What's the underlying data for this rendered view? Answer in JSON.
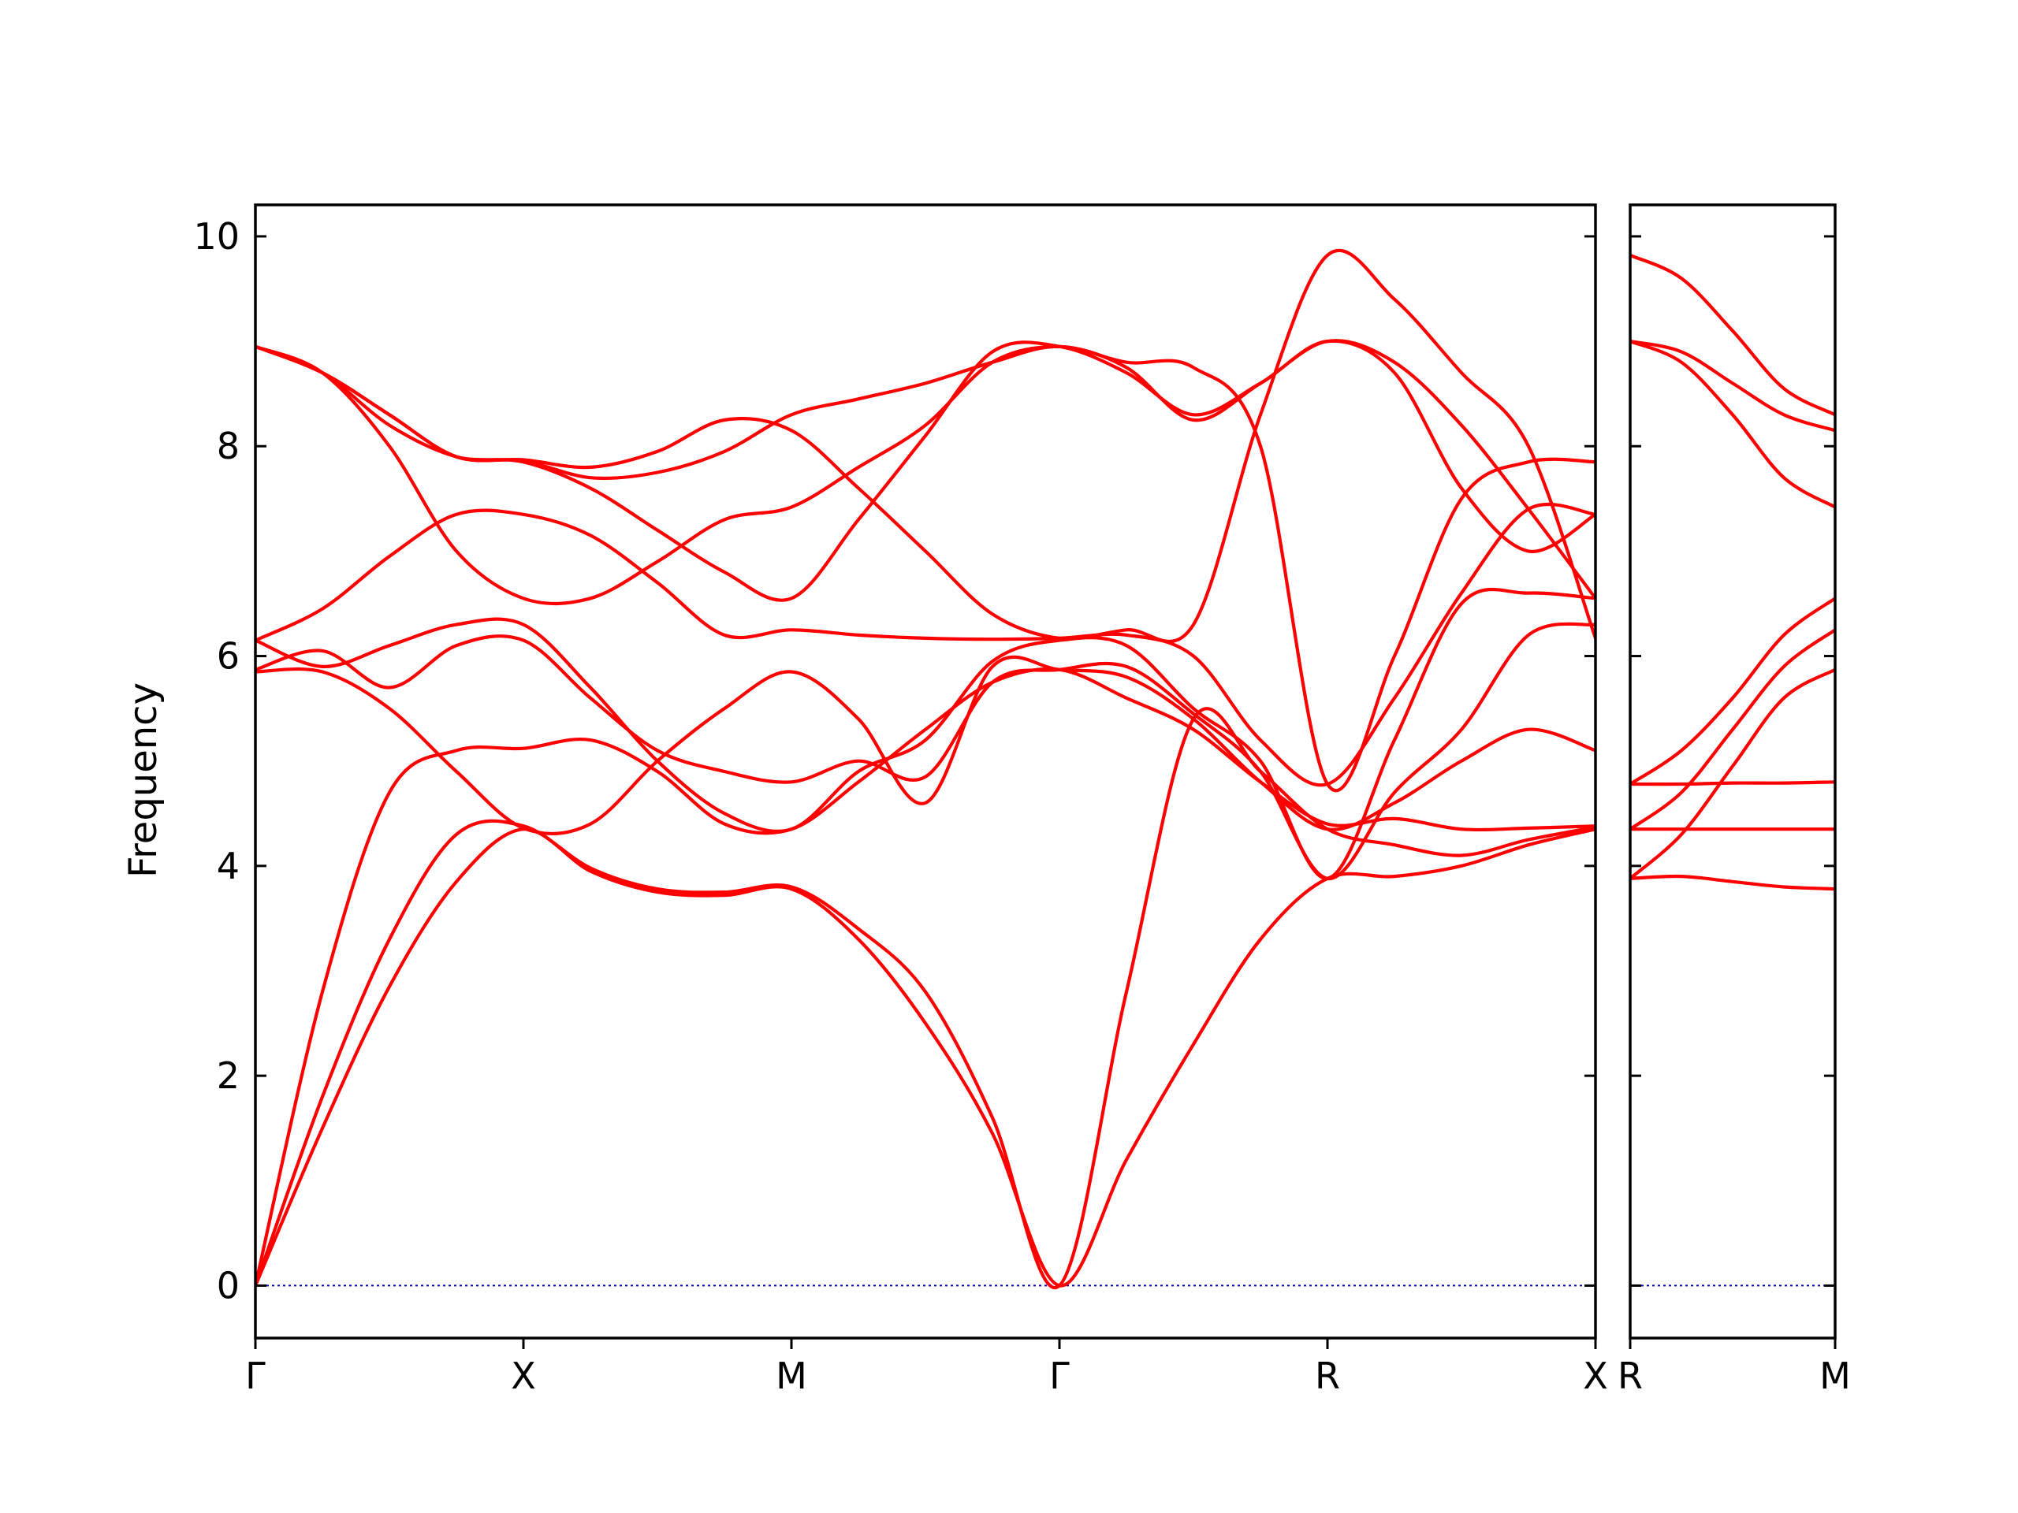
{
  "chart_data": {
    "type": "line",
    "ylabel": "Frequency",
    "ylim": [
      -0.5,
      10.3
    ],
    "yticks": [
      0,
      2,
      4,
      6,
      8,
      10
    ],
    "y_tick_labels": [
      "0",
      "2",
      "4",
      "6",
      "8",
      "10"
    ],
    "grid": false,
    "legend": "none",
    "colors": {
      "bands": "#ff0000",
      "zero_line": "#0000b0",
      "axes": "#000000"
    },
    "panels": [
      {
        "k_points": [
          0,
          1,
          2,
          3,
          4,
          5
        ],
        "k_labels": [
          "Γ",
          "X",
          "M",
          "Γ",
          "R",
          "X"
        ],
        "xlim": [
          0,
          5
        ],
        "series": [
          {
            "x": [
              0,
              0.25,
              0.5,
              0.75,
              1,
              1.25,
              1.5,
              1.75,
              2,
              2.25,
              2.5,
              2.75,
              3,
              3.25,
              3.5,
              3.75,
              4,
              4.25,
              4.5,
              4.75,
              5
            ],
            "values": [
              0,
              1.5,
              2.85,
              3.85,
              4.35,
              3.95,
              3.75,
              3.72,
              3.78,
              3.3,
              2.5,
              1.45,
              0,
              1.2,
              2.3,
              3.3,
              3.88,
              3.9,
              4.0,
              4.2,
              4.35
            ]
          },
          {
            "x": [
              0,
              0.25,
              0.5,
              0.75,
              1,
              1.25,
              1.5,
              1.75,
              2,
              2.25,
              2.5,
              2.75,
              3,
              3.25,
              3.5,
              3.75,
              4,
              4.25,
              4.5,
              4.75,
              5
            ],
            "values": [
              0,
              1.8,
              3.3,
              4.3,
              4.38,
              3.98,
              3.78,
              3.75,
              3.8,
              3.4,
              2.8,
              1.6,
              0,
              2.8,
              5.4,
              4.9,
              4.35,
              4.2,
              4.1,
              4.25,
              4.37
            ]
          },
          {
            "x": [
              0,
              0.25,
              0.5,
              0.75,
              1,
              1.25,
              1.5,
              1.75,
              2,
              2.25,
              2.5,
              2.75,
              3,
              3.25,
              3.5,
              3.75,
              4,
              4.25,
              4.5,
              4.75,
              5
            ],
            "values": [
              0,
              2.8,
              4.7,
              5.1,
              5.12,
              5.2,
              4.9,
              4.4,
              4.35,
              4.8,
              5.3,
              5.75,
              5.87,
              5.6,
              5.3,
              4.8,
              4.4,
              4.45,
              4.35,
              4.36,
              4.38
            ]
          },
          {
            "x": [
              0,
              0.25,
              0.5,
              0.75,
              1,
              1.25,
              1.5,
              1.75,
              2,
              2.25,
              2.5,
              2.75,
              3,
              3.25,
              3.5,
              3.75,
              4,
              4.25,
              4.5,
              4.75,
              5
            ],
            "values": [
              5.85,
              5.85,
              5.5,
              4.9,
              4.36,
              4.4,
              5.0,
              5.5,
              5.85,
              5.4,
              4.6,
              5.9,
              5.87,
              5.8,
              5.4,
              4.8,
              4.35,
              4.6,
              5.0,
              5.3,
              5.1
            ]
          },
          {
            "x": [
              0,
              0.25,
              0.5,
              0.75,
              1,
              1.25,
              1.5,
              1.75,
              2,
              2.25,
              2.5,
              2.75,
              3,
              3.25,
              3.5,
              3.75,
              4,
              4.25,
              4.5,
              4.75,
              5
            ],
            "values": [
              5.87,
              6.05,
              5.7,
              6.1,
              6.15,
              5.6,
              5.1,
              4.9,
              4.8,
              5.0,
              4.85,
              5.75,
              5.87,
              5.9,
              5.45,
              4.9,
              3.88,
              4.7,
              5.3,
              6.2,
              6.3
            ]
          },
          {
            "x": [
              0,
              0.25,
              0.5,
              0.75,
              1,
              1.25,
              1.5,
              1.75,
              2,
              2.25,
              2.5,
              2.75,
              3,
              3.25,
              3.5,
              3.75,
              4,
              4.25,
              4.5,
              4.75,
              5
            ],
            "values": [
              6.15,
              5.9,
              6.1,
              6.3,
              6.3,
              5.7,
              5.0,
              4.5,
              4.35,
              4.9,
              5.2,
              5.95,
              6.15,
              6.1,
              5.5,
              5.0,
              3.88,
              5.2,
              6.5,
              6.6,
              6.55
            ]
          },
          {
            "x": [
              0,
              0.25,
              0.5,
              0.75,
              1,
              1.25,
              1.5,
              1.75,
              2,
              2.25,
              2.5,
              2.75,
              3,
              3.25,
              3.5,
              3.75,
              4,
              4.25,
              4.5,
              4.75,
              5
            ],
            "values": [
              6.15,
              6.45,
              6.95,
              7.35,
              7.35,
              7.15,
              6.7,
              6.2,
              6.25,
              6.2,
              6.17,
              6.16,
              6.17,
              6.2,
              6.0,
              5.2,
              4.78,
              5.6,
              6.6,
              7.4,
              7.35
            ]
          },
          {
            "x": [
              0,
              0.25,
              0.5,
              0.75,
              1,
              1.25,
              1.5,
              1.75,
              2,
              2.25,
              2.5,
              2.75,
              3,
              3.25,
              3.5,
              3.75,
              4,
              4.25,
              4.5,
              4.75,
              5
            ],
            "values": [
              8.95,
              8.7,
              8.0,
              7.0,
              6.55,
              6.55,
              6.9,
              7.3,
              7.42,
              7.8,
              8.2,
              8.8,
              8.95,
              8.8,
              8.75,
              8.0,
              4.78,
              6.0,
              7.5,
              7.85,
              7.85
            ]
          },
          {
            "x": [
              0,
              0.25,
              0.5,
              0.75,
              1,
              1.25,
              1.5,
              1.75,
              2,
              2.25,
              2.5,
              2.75,
              3,
              3.25,
              3.5,
              3.75,
              4,
              4.25,
              4.5,
              4.75,
              5
            ],
            "values": [
              8.95,
              8.7,
              8.2,
              7.9,
              7.85,
              7.6,
              7.2,
              6.8,
              6.55,
              7.3,
              8.1,
              8.9,
              8.95,
              8.7,
              8.3,
              8.6,
              9.0,
              8.7,
              7.6,
              7.0,
              7.35
            ]
          },
          {
            "x": [
              0,
              0.25,
              0.5,
              0.75,
              1,
              1.25,
              1.5,
              1.75,
              2,
              2.25,
              2.5,
              2.75,
              3,
              3.25,
              3.5,
              3.75,
              4,
              4.25,
              4.5,
              4.75,
              5
            ],
            "values": [
              8.95,
              8.7,
              8.3,
              7.9,
              7.86,
              7.7,
              7.75,
              7.95,
              8.3,
              8.45,
              8.6,
              8.8,
              8.95,
              8.75,
              8.25,
              8.6,
              9.0,
              8.8,
              8.2,
              7.4,
              6.55
            ]
          },
          {
            "x": [
              0,
              0.25,
              0.5,
              0.75,
              1,
              1.25,
              1.5,
              1.75,
              2,
              2.25,
              2.5,
              2.75,
              3,
              3.25,
              3.5,
              3.75,
              4,
              4.25,
              4.5,
              4.75,
              5
            ],
            "values": [
              8.95,
              8.7,
              8.3,
              7.9,
              7.87,
              7.8,
              7.95,
              8.25,
              8.15,
              7.6,
              7.0,
              6.4,
              6.17,
              6.25,
              6.3,
              8.3,
              9.82,
              9.4,
              8.7,
              8.0,
              6.17
            ]
          }
        ]
      },
      {
        "k_points": [
          0,
          1
        ],
        "k_labels": [
          "R",
          "M"
        ],
        "xlim": [
          0,
          1
        ],
        "series": [
          {
            "x": [
              0,
              0.25,
              0.5,
              0.75,
              1
            ],
            "values": [
              3.88,
              3.9,
              3.85,
              3.8,
              3.78
            ]
          },
          {
            "x": [
              0,
              0.25,
              0.5,
              0.75,
              1
            ],
            "values": [
              4.35,
              4.35,
              4.35,
              4.35,
              4.35
            ]
          },
          {
            "x": [
              0,
              0.25,
              0.5,
              0.75,
              1
            ],
            "values": [
              4.78,
              4.78,
              4.79,
              4.79,
              4.8
            ]
          },
          {
            "x": [
              0,
              0.25,
              0.5,
              0.75,
              1
            ],
            "values": [
              3.88,
              4.3,
              4.95,
              5.6,
              5.87
            ]
          },
          {
            "x": [
              0,
              0.25,
              0.5,
              0.75,
              1
            ],
            "values": [
              4.35,
              4.7,
              5.3,
              5.9,
              6.25
            ]
          },
          {
            "x": [
              0,
              0.25,
              0.5,
              0.75,
              1
            ],
            "values": [
              4.78,
              5.1,
              5.6,
              6.2,
              6.55
            ]
          },
          {
            "x": [
              0,
              0.25,
              0.5,
              0.75,
              1
            ],
            "values": [
              9.0,
              8.8,
              8.3,
              7.7,
              7.42
            ]
          },
          {
            "x": [
              0,
              0.25,
              0.5,
              0.75,
              1
            ],
            "values": [
              9.0,
              8.9,
              8.6,
              8.3,
              8.15
            ]
          },
          {
            "x": [
              0,
              0.25,
              0.5,
              0.75,
              1
            ],
            "values": [
              9.82,
              9.6,
              9.1,
              8.55,
              8.3
            ]
          }
        ]
      }
    ]
  }
}
